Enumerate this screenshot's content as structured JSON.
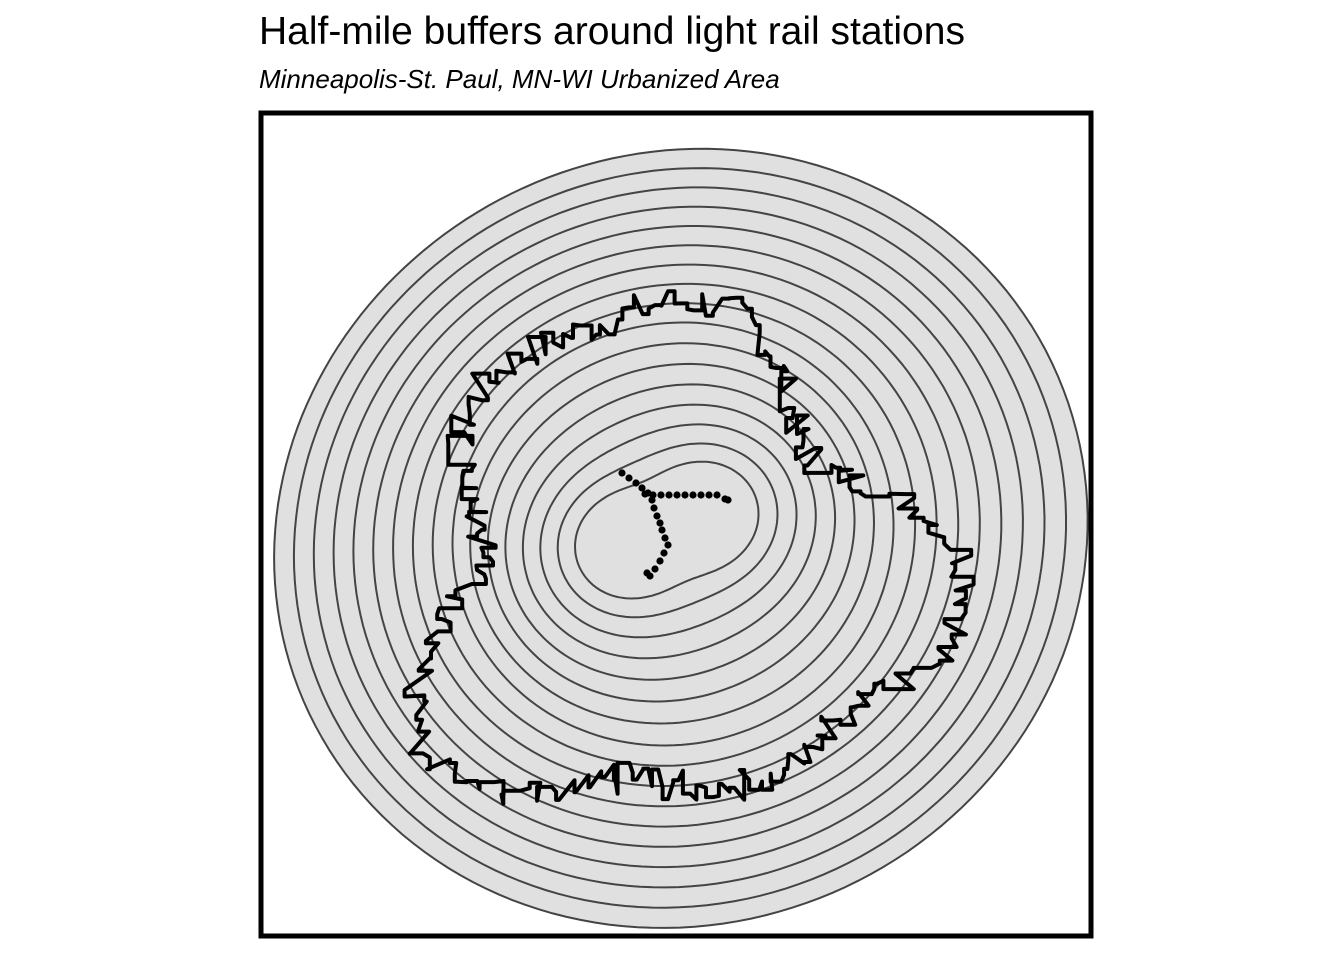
{
  "title": "Half-mile buffers around light rail stations",
  "subtitle": "Minneapolis-St. Paul, MN-WI Urbanized Area",
  "map": {
    "buffer_count": 17,
    "buffer_interval": "0.5 mile",
    "buffer_fill": "#e0e0e0",
    "buffer_stroke": "#444444",
    "boundary_stroke": "#000000",
    "station_color": "#000000",
    "frame_color": "#000000",
    "layers": [
      "buffers",
      "urbanized-area-boundary",
      "stations"
    ]
  }
}
